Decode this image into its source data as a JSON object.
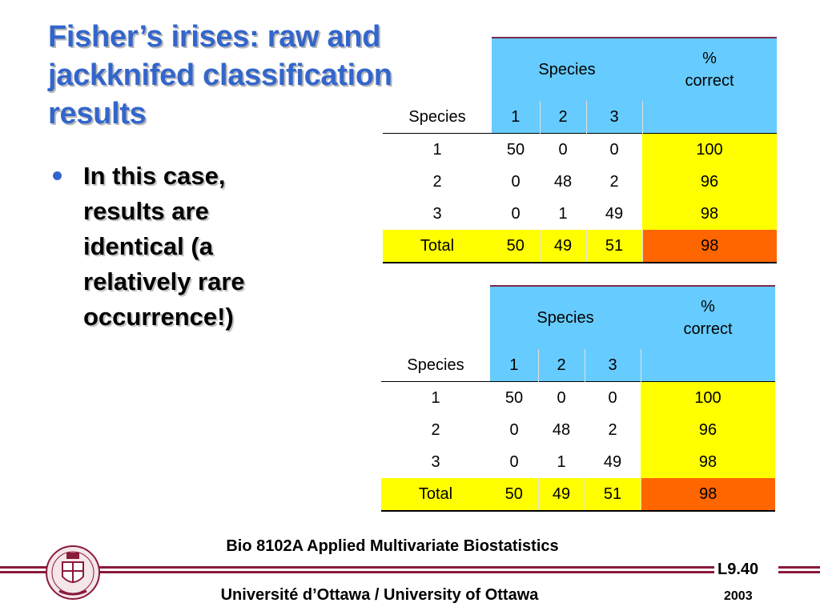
{
  "slide": {
    "title_lines": [
      "Fisher’s irises: raw and",
      "jackknifed classification",
      "results"
    ],
    "bullet_lines": [
      "In this case,",
      "results are",
      "identical (a",
      "relatively rare",
      "occurrence!)"
    ]
  },
  "tables": [
    {
      "header_species": "Species",
      "header_correct_1": "%",
      "header_correct_2": "correct",
      "row_label_header": "Species",
      "columns": [
        "1",
        "2",
        "3"
      ],
      "rows": [
        {
          "label": "1",
          "values": [
            "50",
            "0",
            "0"
          ],
          "pct": "100"
        },
        {
          "label": "2",
          "values": [
            "0",
            "48",
            "2"
          ],
          "pct": "96"
        },
        {
          "label": "3",
          "values": [
            "0",
            "1",
            "49"
          ],
          "pct": "98"
        }
      ],
      "total": {
        "label": "Total",
        "values": [
          "50",
          "49",
          "51"
        ],
        "pct": "98"
      }
    },
    {
      "header_species": "Species",
      "header_correct_1": "%",
      "header_correct_2": "correct",
      "row_label_header": "Species",
      "columns": [
        "1",
        "2",
        "3"
      ],
      "rows": [
        {
          "label": "1",
          "values": [
            "50",
            "0",
            "0"
          ],
          "pct": "100"
        },
        {
          "label": "2",
          "values": [
            "0",
            "48",
            "2"
          ],
          "pct": "96"
        },
        {
          "label": "3",
          "values": [
            "0",
            "1",
            "49"
          ],
          "pct": "98"
        }
      ],
      "total": {
        "label": "Total",
        "values": [
          "50",
          "49",
          "51"
        ],
        "pct": "98"
      }
    }
  ],
  "footer": {
    "course": "Bio 8102A Applied Multivariate Biostatistics",
    "slide_number": "L9.40",
    "university": "Université d’Ottawa / University of Ottawa",
    "year": "2003"
  },
  "colors": {
    "title": "#3366cc",
    "header_blue": "#66ccff",
    "highlight_yellow": "#ffff00",
    "highlight_orange": "#ff6600",
    "band": "#8a1a3a"
  }
}
